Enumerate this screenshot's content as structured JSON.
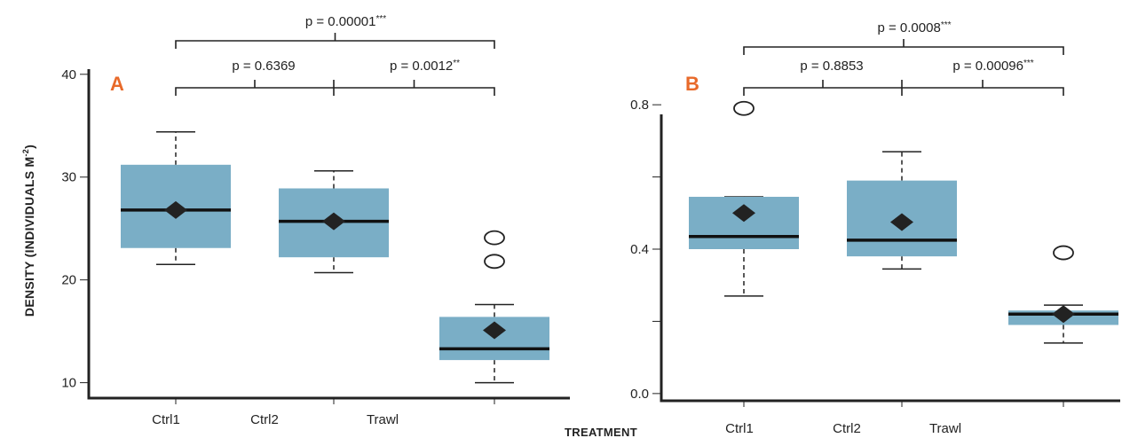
{
  "figure": {
    "ylabel": "DENSITY (INDIVIDUALS M-2)",
    "ylabel_main": "DENSITY (INDIVIDUALS M",
    "ylabel_sup": "-2",
    "ylabel_close": ")",
    "xlabel": "TREATMENT",
    "accent_color": "#e86a2a",
    "box_color": "#7aaec6"
  },
  "chart_data": [
    {
      "type": "box",
      "panel": "A",
      "categories": [
        "Ctrl1",
        "Ctrl2",
        "Trawl"
      ],
      "ylim": [
        8.5,
        40.5
      ],
      "yticks": [
        10,
        20,
        30,
        40
      ],
      "ytick_labels": [
        "10",
        "20",
        "30",
        "40"
      ],
      "boxes": [
        {
          "category": "Ctrl1",
          "whisker_low": 21.5,
          "q1": 23.1,
          "median": 26.8,
          "q3": 31.2,
          "whisker_high": 34.4,
          "mean": 26.8,
          "outliers": []
        },
        {
          "category": "Ctrl2",
          "whisker_low": 20.7,
          "q1": 22.2,
          "median": 25.7,
          "q3": 28.9,
          "whisker_high": 30.6,
          "mean": 25.7,
          "outliers": []
        },
        {
          "category": "Trawl",
          "whisker_low": 10.0,
          "q1": 12.2,
          "median": 13.3,
          "q3": 16.4,
          "whisker_high": 17.6,
          "mean": 15.1,
          "outliers": [
            21.8,
            24.1
          ]
        }
      ],
      "comparisons": [
        {
          "groups": [
            "Ctrl1",
            "Ctrl2"
          ],
          "label": "p = 0.6369"
        },
        {
          "groups": [
            "Ctrl2",
            "Trawl"
          ],
          "label": "p = 0.0012**"
        },
        {
          "groups": [
            "Ctrl1",
            "Trawl"
          ],
          "label": "p = 0.00001***"
        }
      ]
    },
    {
      "type": "box",
      "panel": "B",
      "categories": [
        "Ctrl1",
        "Ctrl2",
        "Trawl"
      ],
      "ylim": [
        -0.02,
        0.82
      ],
      "yticks": [
        0.0,
        0.2,
        0.4,
        0.6,
        0.8
      ],
      "ytick_labels": [
        "0.0",
        "",
        "0.4",
        "",
        "0.8"
      ],
      "boxes": [
        {
          "category": "Ctrl1",
          "whisker_low": 0.27,
          "q1": 0.4,
          "median": 0.435,
          "q3": 0.545,
          "whisker_high": 0.545,
          "mean": 0.5,
          "outliers": [
            0.79
          ]
        },
        {
          "category": "Ctrl2",
          "whisker_low": 0.345,
          "q1": 0.38,
          "median": 0.425,
          "q3": 0.59,
          "whisker_high": 0.67,
          "mean": 0.475,
          "outliers": []
        },
        {
          "category": "Trawl",
          "whisker_low": 0.14,
          "q1": 0.19,
          "median": 0.22,
          "q3": 0.23,
          "whisker_high": 0.245,
          "mean": 0.22,
          "outliers": [
            0.39
          ]
        }
      ],
      "comparisons": [
        {
          "groups": [
            "Ctrl1",
            "Ctrl2"
          ],
          "label": "p = 0.8853"
        },
        {
          "groups": [
            "Ctrl2",
            "Trawl"
          ],
          "label": "p = 0.00096***"
        },
        {
          "groups": [
            "Ctrl1",
            "Trawl"
          ],
          "label": "p = 0.0008***"
        }
      ]
    }
  ]
}
